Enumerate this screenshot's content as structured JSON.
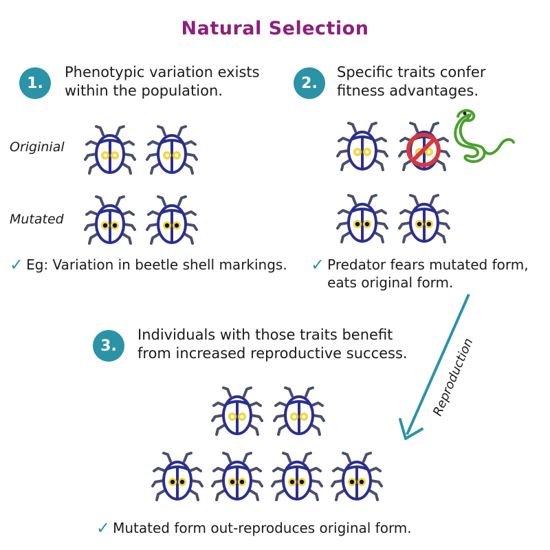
{
  "title": "Natural Selection",
  "steps": [
    {
      "number": "1.",
      "lines": [
        "Phenotypic variation exists",
        "within the population."
      ]
    },
    {
      "number": "2.",
      "lines": [
        "Specific traits confer",
        "fitness advantages."
      ]
    },
    {
      "number": "3.",
      "lines": [
        "Individuals with those traits benefit",
        "from increased reproductive success."
      ]
    }
  ],
  "row_labels": {
    "original": "Originial",
    "mutated": "Mutated"
  },
  "notes": [
    {
      "lines": [
        "Eg: Variation in beetle shell markings."
      ]
    },
    {
      "lines": [
        "Predator fears mutated form,",
        "eats original form."
      ]
    },
    {
      "lines": [
        "Mutated form out-reproduces original form."
      ]
    }
  ],
  "arrow_label": "Reproduction",
  "colors": {
    "title": "#8e1f7d",
    "badge": "#2a93a8",
    "beetle_body": "#2b2f8f",
    "beetle_legs": "#4a4f6a",
    "spot_yellow": "#f3d63a",
    "snake": "#4aa02c",
    "prohibit": "#d9363e",
    "arrow": "#2a93a8"
  },
  "icons": {
    "beetle_original": "beetle-original-icon",
    "beetle_mutated": "beetle-mutated-icon",
    "snake": "snake-icon",
    "prohibit": "no-sign-icon"
  }
}
